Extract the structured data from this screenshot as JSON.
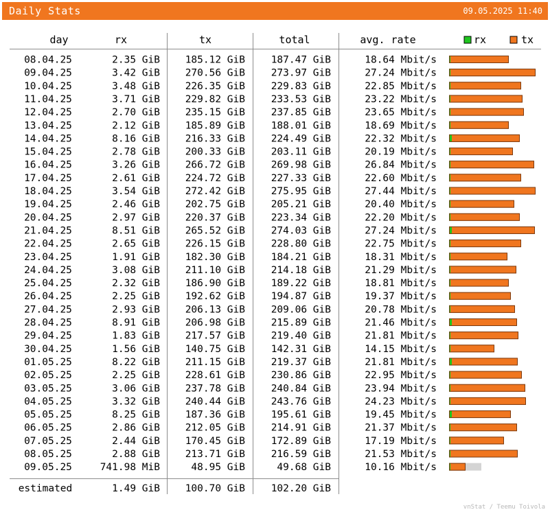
{
  "header": {
    "title": "Daily Stats",
    "timestamp": "09.05.2025 11:40"
  },
  "columns": {
    "day": "day",
    "rx": "rx",
    "tx": "tx",
    "total": "total",
    "avg_rate": "avg. rate"
  },
  "legend": {
    "rx": "rx",
    "tx": "tx"
  },
  "colors": {
    "rx": "#1fc61f",
    "tx": "#f0761f",
    "estimate": "#d4d4d4",
    "lines": "#8c8c8c",
    "titlebar": "#f0761f"
  },
  "chart_data": {
    "type": "table",
    "bar_max_total_gib": 275.95,
    "rows": [
      {
        "day": "08.04.25",
        "rx": "2.35 GiB",
        "tx": "185.12 GiB",
        "total": "187.47 GiB",
        "rate": "18.64 Mbit/s",
        "rx_gib": 2.35,
        "tx_gib": 185.12
      },
      {
        "day": "09.04.25",
        "rx": "3.42 GiB",
        "tx": "270.56 GiB",
        "total": "273.97 GiB",
        "rate": "27.24 Mbit/s",
        "rx_gib": 3.42,
        "tx_gib": 270.56
      },
      {
        "day": "10.04.25",
        "rx": "3.48 GiB",
        "tx": "226.35 GiB",
        "total": "229.83 GiB",
        "rate": "22.85 Mbit/s",
        "rx_gib": 3.48,
        "tx_gib": 226.35
      },
      {
        "day": "11.04.25",
        "rx": "3.71 GiB",
        "tx": "229.82 GiB",
        "total": "233.53 GiB",
        "rate": "23.22 Mbit/s",
        "rx_gib": 3.71,
        "tx_gib": 229.82
      },
      {
        "day": "12.04.25",
        "rx": "2.70 GiB",
        "tx": "235.15 GiB",
        "total": "237.85 GiB",
        "rate": "23.65 Mbit/s",
        "rx_gib": 2.7,
        "tx_gib": 235.15
      },
      {
        "day": "13.04.25",
        "rx": "2.12 GiB",
        "tx": "185.89 GiB",
        "total": "188.01 GiB",
        "rate": "18.69 Mbit/s",
        "rx_gib": 2.12,
        "tx_gib": 185.89
      },
      {
        "day": "14.04.25",
        "rx": "8.16 GiB",
        "tx": "216.33 GiB",
        "total": "224.49 GiB",
        "rate": "22.32 Mbit/s",
        "rx_gib": 8.16,
        "tx_gib": 216.33
      },
      {
        "day": "15.04.25",
        "rx": "2.78 GiB",
        "tx": "200.33 GiB",
        "total": "203.11 GiB",
        "rate": "20.19 Mbit/s",
        "rx_gib": 2.78,
        "tx_gib": 200.33
      },
      {
        "day": "16.04.25",
        "rx": "3.26 GiB",
        "tx": "266.72 GiB",
        "total": "269.98 GiB",
        "rate": "26.84 Mbit/s",
        "rx_gib": 3.26,
        "tx_gib": 266.72
      },
      {
        "day": "17.04.25",
        "rx": "2.61 GiB",
        "tx": "224.72 GiB",
        "total": "227.33 GiB",
        "rate": "22.60 Mbit/s",
        "rx_gib": 2.61,
        "tx_gib": 224.72
      },
      {
        "day": "18.04.25",
        "rx": "3.54 GiB",
        "tx": "272.42 GiB",
        "total": "275.95 GiB",
        "rate": "27.44 Mbit/s",
        "rx_gib": 3.54,
        "tx_gib": 272.42
      },
      {
        "day": "19.04.25",
        "rx": "2.46 GiB",
        "tx": "202.75 GiB",
        "total": "205.21 GiB",
        "rate": "20.40 Mbit/s",
        "rx_gib": 2.46,
        "tx_gib": 202.75
      },
      {
        "day": "20.04.25",
        "rx": "2.97 GiB",
        "tx": "220.37 GiB",
        "total": "223.34 GiB",
        "rate": "22.20 Mbit/s",
        "rx_gib": 2.97,
        "tx_gib": 220.37
      },
      {
        "day": "21.04.25",
        "rx": "8.51 GiB",
        "tx": "265.52 GiB",
        "total": "274.03 GiB",
        "rate": "27.24 Mbit/s",
        "rx_gib": 8.51,
        "tx_gib": 265.52
      },
      {
        "day": "22.04.25",
        "rx": "2.65 GiB",
        "tx": "226.15 GiB",
        "total": "228.80 GiB",
        "rate": "22.75 Mbit/s",
        "rx_gib": 2.65,
        "tx_gib": 226.15
      },
      {
        "day": "23.04.25",
        "rx": "1.91 GiB",
        "tx": "182.30 GiB",
        "total": "184.21 GiB",
        "rate": "18.31 Mbit/s",
        "rx_gib": 1.91,
        "tx_gib": 182.3
      },
      {
        "day": "24.04.25",
        "rx": "3.08 GiB",
        "tx": "211.10 GiB",
        "total": "214.18 GiB",
        "rate": "21.29 Mbit/s",
        "rx_gib": 3.08,
        "tx_gib": 211.1
      },
      {
        "day": "25.04.25",
        "rx": "2.32 GiB",
        "tx": "186.90 GiB",
        "total": "189.22 GiB",
        "rate": "18.81 Mbit/s",
        "rx_gib": 2.32,
        "tx_gib": 186.9
      },
      {
        "day": "26.04.25",
        "rx": "2.25 GiB",
        "tx": "192.62 GiB",
        "total": "194.87 GiB",
        "rate": "19.37 Mbit/s",
        "rx_gib": 2.25,
        "tx_gib": 192.62
      },
      {
        "day": "27.04.25",
        "rx": "2.93 GiB",
        "tx": "206.13 GiB",
        "total": "209.06 GiB",
        "rate": "20.78 Mbit/s",
        "rx_gib": 2.93,
        "tx_gib": 206.13
      },
      {
        "day": "28.04.25",
        "rx": "8.91 GiB",
        "tx": "206.98 GiB",
        "total": "215.89 GiB",
        "rate": "21.46 Mbit/s",
        "rx_gib": 8.91,
        "tx_gib": 206.98
      },
      {
        "day": "29.04.25",
        "rx": "1.83 GiB",
        "tx": "217.57 GiB",
        "total": "219.40 GiB",
        "rate": "21.81 Mbit/s",
        "rx_gib": 1.83,
        "tx_gib": 217.57
      },
      {
        "day": "30.04.25",
        "rx": "1.56 GiB",
        "tx": "140.75 GiB",
        "total": "142.31 GiB",
        "rate": "14.15 Mbit/s",
        "rx_gib": 1.56,
        "tx_gib": 140.75
      },
      {
        "day": "01.05.25",
        "rx": "8.22 GiB",
        "tx": "211.15 GiB",
        "total": "219.37 GiB",
        "rate": "21.81 Mbit/s",
        "rx_gib": 8.22,
        "tx_gib": 211.15
      },
      {
        "day": "02.05.25",
        "rx": "2.25 GiB",
        "tx": "228.61 GiB",
        "total": "230.86 GiB",
        "rate": "22.95 Mbit/s",
        "rx_gib": 2.25,
        "tx_gib": 228.61
      },
      {
        "day": "03.05.25",
        "rx": "3.06 GiB",
        "tx": "237.78 GiB",
        "total": "240.84 GiB",
        "rate": "23.94 Mbit/s",
        "rx_gib": 3.06,
        "tx_gib": 237.78
      },
      {
        "day": "04.05.25",
        "rx": "3.32 GiB",
        "tx": "240.44 GiB",
        "total": "243.76 GiB",
        "rate": "24.23 Mbit/s",
        "rx_gib": 3.32,
        "tx_gib": 240.44
      },
      {
        "day": "05.05.25",
        "rx": "8.25 GiB",
        "tx": "187.36 GiB",
        "total": "195.61 GiB",
        "rate": "19.45 Mbit/s",
        "rx_gib": 8.25,
        "tx_gib": 187.36
      },
      {
        "day": "06.05.25",
        "rx": "2.86 GiB",
        "tx": "212.05 GiB",
        "total": "214.91 GiB",
        "rate": "21.37 Mbit/s",
        "rx_gib": 2.86,
        "tx_gib": 212.05
      },
      {
        "day": "07.05.25",
        "rx": "2.44 GiB",
        "tx": "170.45 GiB",
        "total": "172.89 GiB",
        "rate": "17.19 Mbit/s",
        "rx_gib": 2.44,
        "tx_gib": 170.45
      },
      {
        "day": "08.05.25",
        "rx": "2.88 GiB",
        "tx": "213.71 GiB",
        "total": "216.59 GiB",
        "rate": "21.53 Mbit/s",
        "rx_gib": 2.88,
        "tx_gib": 213.71
      },
      {
        "day": "09.05.25",
        "rx": "741.98 MiB",
        "tx": "48.95 GiB",
        "total": "49.68 GiB",
        "rate": "10.16 Mbit/s",
        "rx_gib": 0.7246,
        "tx_gib": 48.95,
        "estimate_total_gib": 102.2
      }
    ],
    "estimated": {
      "label": "estimated",
      "rx": "1.49 GiB",
      "tx": "100.70 GiB",
      "total": "102.20 GiB"
    }
  },
  "footer": {
    "credit": "vnStat / Teemu Toivola"
  }
}
